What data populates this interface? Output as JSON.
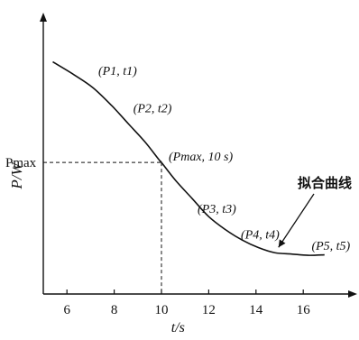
{
  "chart_data": {
    "type": "line",
    "xlabel": "t/s",
    "ylabel": "P/W",
    "xticks": [
      "6",
      "8",
      "10",
      "12",
      "14",
      "16"
    ],
    "xlim": [
      5,
      18.5
    ],
    "ylim": [
      0,
      1
    ],
    "y_marked_label": "Pmax",
    "y_value_units": "relative (no numeric y-axis printed)",
    "series": [
      {
        "x": [
          5.4,
          6.3,
          7.1,
          7.9,
          8.6,
          9.3,
          9.9,
          10.0,
          10.6,
          11.3,
          12.0,
          12.7,
          13.4,
          14.1,
          14.8,
          15.5,
          16.2,
          16.9
        ],
        "y": [
          0.9,
          0.85,
          0.8,
          0.73,
          0.66,
          0.59,
          0.52,
          0.51,
          0.44,
          0.37,
          0.3,
          0.25,
          0.21,
          0.18,
          0.16,
          0.155,
          0.15,
          0.152
        ]
      }
    ],
    "point_labels": [
      {
        "x": 7.1,
        "y": 0.8,
        "text": "(P1, t1)"
      },
      {
        "x": 8.5,
        "y": 0.67,
        "text": "(P2, t2)"
      },
      {
        "x": 10.0,
        "y": 0.51,
        "text": "(Pmax, 10 s)"
      },
      {
        "x": 11.3,
        "y": 0.37,
        "text": "(P3, t3)"
      },
      {
        "x": 14.2,
        "y": 0.18,
        "text": "(P4, t4)"
      },
      {
        "x": 16.2,
        "y": 0.15,
        "text": "(P5, t5)"
      }
    ],
    "annotation": {
      "text": "拟合曲线",
      "points_to": {
        "x": 14.8,
        "y": 0.16
      }
    },
    "grid": false,
    "legend": "none",
    "dashed_guides": {
      "x": 10,
      "y_label": "Pmax"
    }
  }
}
